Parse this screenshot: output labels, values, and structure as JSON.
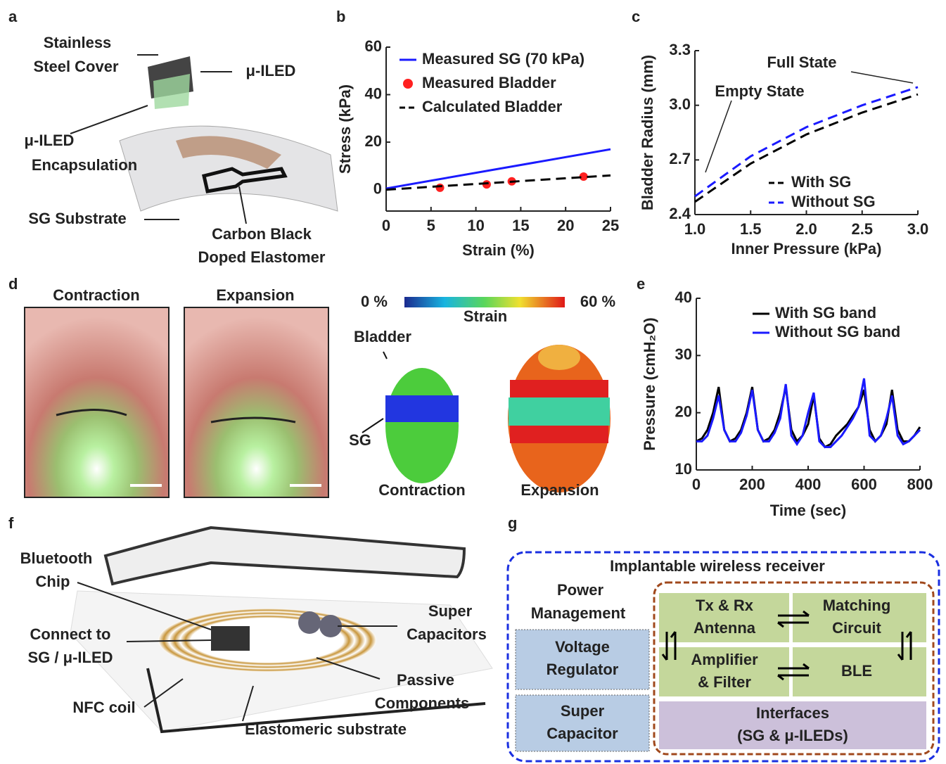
{
  "panel_labels": [
    "a",
    "b",
    "c",
    "d",
    "e",
    "f",
    "g"
  ],
  "panel_a": {
    "labels": [
      "Stainless",
      "Steel Cover",
      "μ-ILED",
      "μ-ILED",
      "Encapsulation",
      "SG Substrate",
      "Carbon Black",
      "Doped Elastomer"
    ]
  },
  "chart_data": [
    {
      "type": "line",
      "xlabel": "Strain (%)",
      "ylabel": "Stress (kPa)",
      "xlim": [
        0,
        25
      ],
      "ylim": [
        -9,
        60
      ],
      "xticks": [
        0,
        5,
        10,
        15,
        20,
        25
      ],
      "yticks": [
        0,
        20,
        40,
        60
      ],
      "series": [
        {
          "name": "Measured SG (70 kPa)",
          "color": "#1a1aff",
          "mode": "line",
          "x": [
            0,
            25
          ],
          "values": [
            0.5,
            17
          ]
        },
        {
          "name": "Measured Bladder",
          "color": "#ff2020",
          "mode": "markers",
          "x": [
            6,
            11.2,
            14,
            22
          ],
          "values": [
            0.8,
            2.2,
            3.5,
            5.5
          ]
        },
        {
          "name": "Calculated Bladder",
          "color": "#000000",
          "mode": "line",
          "dash": true,
          "x": [
            0,
            25
          ],
          "values": [
            0,
            6
          ]
        }
      ]
    },
    {
      "type": "line",
      "xlabel": "Inner Pressure (kPa)",
      "ylabel": "Bladder Radius (mm)",
      "xlim": [
        1,
        3
      ],
      "ylim": [
        2.4,
        3.3
      ],
      "xticks": [
        {
          "value": 1,
          "label": "1.0"
        },
        1.5,
        {
          "value": 2,
          "label": "2.0"
        },
        2.5,
        {
          "value": 3,
          "label": "3.0"
        }
      ],
      "yticks": [
        2.4,
        2.7,
        {
          "value": 3,
          "label": "3.0"
        },
        3.3
      ],
      "annotations": [
        "Full State",
        "Empty State"
      ],
      "series": [
        {
          "name": "With SG",
          "color": "#000000",
          "mode": "line",
          "dash": true,
          "x": [
            1,
            1.5,
            2,
            2.5,
            3
          ],
          "values": [
            2.47,
            2.68,
            2.84,
            2.96,
            3.06
          ]
        },
        {
          "name": "Without SG",
          "color": "#1a1aff",
          "mode": "line",
          "dash": true,
          "x": [
            1,
            1.5,
            2,
            2.5,
            3
          ],
          "values": [
            2.5,
            2.72,
            2.88,
            3.0,
            3.1
          ]
        }
      ]
    },
    {
      "type": "line",
      "xlabel": "Time (sec)",
      "ylabel": "Pressure (cmH₂O)",
      "xlim": [
        0,
        800
      ],
      "ylim": [
        10,
        40
      ],
      "xticks": [
        0,
        200,
        400,
        600,
        800
      ],
      "yticks": [
        10,
        20,
        30,
        40
      ],
      "series": [
        {
          "name": "With SG band",
          "color": "#000000",
          "mode": "line",
          "x": [
            0,
            20,
            40,
            60,
            80,
            100,
            120,
            140,
            160,
            180,
            200,
            220,
            240,
            260,
            280,
            300,
            320,
            340,
            360,
            380,
            400,
            420,
            440,
            460,
            480,
            500,
            520,
            540,
            560,
            580,
            600,
            620,
            640,
            660,
            680,
            700,
            720,
            740,
            760,
            780,
            800
          ],
          "values": [
            15,
            15.5,
            17,
            20,
            24.5,
            17,
            15,
            15.5,
            17,
            20,
            24.5,
            17,
            15,
            15.5,
            17,
            20,
            24.5,
            17,
            15,
            16,
            18,
            23,
            15.5,
            14,
            14.5,
            16,
            17,
            18,
            19.5,
            21,
            24,
            17,
            15,
            16,
            18,
            24,
            17,
            15,
            15,
            16,
            17.5
          ]
        },
        {
          "name": "Without SG band",
          "color": "#1a1aff",
          "mode": "line",
          "x": [
            0,
            20,
            40,
            60,
            80,
            100,
            120,
            140,
            160,
            180,
            200,
            220,
            240,
            260,
            280,
            300,
            320,
            340,
            360,
            380,
            400,
            420,
            440,
            460,
            480,
            500,
            520,
            540,
            560,
            580,
            600,
            620,
            640,
            660,
            680,
            700,
            720,
            740,
            760,
            780,
            800
          ],
          "values": [
            15,
            15,
            16,
            19,
            23,
            17,
            15,
            15,
            16.5,
            19.5,
            24,
            17,
            15,
            15,
            16.5,
            19,
            25,
            16,
            14.5,
            16,
            20,
            23.5,
            15,
            14,
            14,
            15,
            16,
            17.5,
            19,
            21,
            26,
            16,
            15,
            16,
            19,
            23,
            16,
            14.5,
            15,
            16,
            17
          ]
        }
      ]
    }
  ],
  "panel_d": {
    "photo_labels": [
      "Contraction",
      "Expansion"
    ],
    "colorbar": {
      "min": "0 %",
      "max": "60 %",
      "label": "Strain"
    },
    "model_labels": [
      "Bladder",
      "SG",
      "Contraction",
      "Expansion"
    ]
  },
  "panel_f": {
    "labels": [
      "Bluetooth",
      "Chip",
      "Super",
      "Capacitors",
      "Connect to",
      "SG / μ-ILED",
      "Passive",
      "Components",
      "NFC coil",
      "Elastomeric substrate"
    ]
  },
  "panel_g": {
    "title": "Implantable wireless receiver",
    "power": [
      "Power",
      "Management"
    ],
    "boxes": [
      [
        "Voltage",
        "Regulator"
      ],
      [
        "Super",
        "Capacitor"
      ],
      [
        "Tx & Rx",
        "Antenna"
      ],
      [
        "Matching",
        "Circuit"
      ],
      [
        "Amplifier",
        "& Filter"
      ],
      [
        "BLE"
      ],
      [
        "Interfaces",
        "(SG & μ-ILEDs)"
      ]
    ]
  }
}
